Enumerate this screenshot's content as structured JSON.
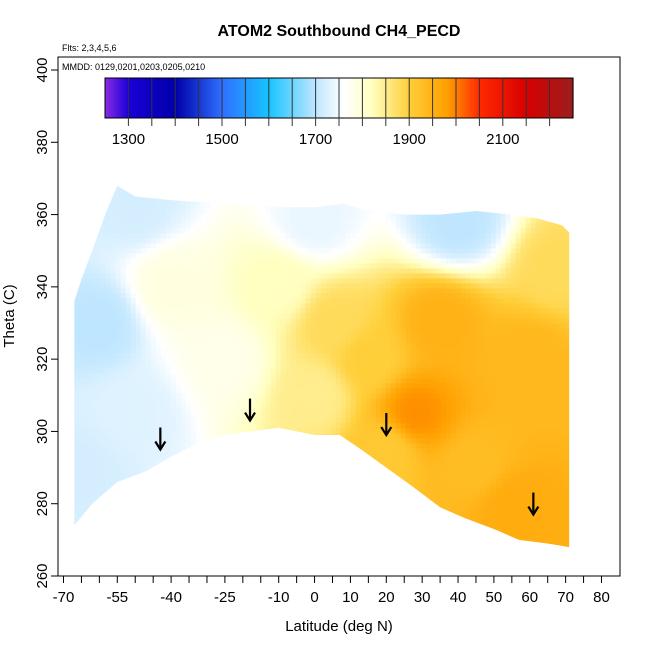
{
  "chart_data": {
    "type": "heatmap",
    "title": "ATOM2 Southbound CH4_PECD",
    "annotations": {
      "flights": "Flts: 2,3,4,5,6",
      "dates": "MMDD: 0129,0201,0203,0205,0210"
    },
    "xlabel": "Latitude (deg N)",
    "ylabel": "Theta (C)",
    "xlim": [
      -70,
      80
    ],
    "ylim": [
      260,
      400
    ],
    "x_ticks": [
      -70,
      -55,
      -40,
      -25,
      -10,
      0,
      10,
      20,
      30,
      40,
      50,
      60,
      70,
      80
    ],
    "x_tick_labels": [
      "-70",
      "-55",
      "-40",
      "-25",
      "-10",
      "0",
      "10",
      "20",
      "30",
      "40",
      "50",
      "60",
      "70",
      "80"
    ],
    "x_minor_ticks": [
      -65,
      -60,
      -50,
      -45,
      -35,
      -30,
      -20,
      -15,
      -5,
      5,
      15,
      25,
      35,
      45,
      55,
      65,
      75
    ],
    "y_ticks": [
      260,
      280,
      300,
      320,
      340,
      360,
      380,
      400
    ],
    "y_tick_labels": [
      "260",
      "280",
      "300",
      "320",
      "340",
      "360",
      "380",
      "400"
    ],
    "colorbar": {
      "range": [
        1250,
        2250
      ],
      "tick_values": [
        1300,
        1500,
        1700,
        1900,
        2100
      ],
      "tick_labels": [
        "1300",
        "1500",
        "1700",
        "1900",
        "2100"
      ],
      "divisions": [
        1250,
        1300,
        1350,
        1400,
        1450,
        1500,
        1550,
        1600,
        1650,
        1700,
        1750,
        1800,
        1850,
        1900,
        1950,
        2000,
        2050,
        2100,
        2150,
        2200,
        2250
      ],
      "color_stops": [
        {
          "value": 1250,
          "color": "#8a2be2"
        },
        {
          "value": 1300,
          "color": "#1b00d8"
        },
        {
          "value": 1400,
          "color": "#0000a8"
        },
        {
          "value": 1500,
          "color": "#2f6fff"
        },
        {
          "value": 1600,
          "color": "#18c4ff"
        },
        {
          "value": 1700,
          "color": "#bfe6ff"
        },
        {
          "value": 1760,
          "color": "#ffffff"
        },
        {
          "value": 1820,
          "color": "#ffffc0"
        },
        {
          "value": 1900,
          "color": "#ffcf3a"
        },
        {
          "value": 1980,
          "color": "#ffa000"
        },
        {
          "value": 2050,
          "color": "#ff2a00"
        },
        {
          "value": 2150,
          "color": "#d80000"
        },
        {
          "value": 2250,
          "color": "#9a1e1e"
        }
      ]
    },
    "domain_bottom": [
      [
        -67,
        274
      ],
      [
        -62,
        280
      ],
      [
        -55,
        286
      ],
      [
        -47,
        289
      ],
      [
        -40,
        293
      ],
      [
        -32,
        297
      ],
      [
        -25,
        299
      ],
      [
        -18,
        300
      ],
      [
        -10,
        301
      ],
      [
        0,
        299
      ],
      [
        7,
        299
      ],
      [
        13,
        295
      ],
      [
        20,
        290
      ],
      [
        27,
        285
      ],
      [
        35,
        279
      ],
      [
        42,
        276
      ],
      [
        50,
        273
      ],
      [
        57,
        270
      ],
      [
        65,
        269
      ],
      [
        71,
        268
      ]
    ],
    "domain_top": [
      [
        -67,
        336
      ],
      [
        -65,
        342
      ],
      [
        -62,
        350
      ],
      [
        -58,
        361
      ],
      [
        -55,
        368
      ],
      [
        -50,
        365
      ],
      [
        -40,
        364
      ],
      [
        -25,
        363
      ],
      [
        -15,
        363
      ],
      [
        -10,
        362
      ],
      [
        0,
        362
      ],
      [
        8,
        363
      ],
      [
        15,
        361
      ],
      [
        25,
        360
      ],
      [
        35,
        360
      ],
      [
        45,
        361
      ],
      [
        55,
        360
      ],
      [
        62,
        359
      ],
      [
        69,
        357
      ],
      [
        71,
        355
      ]
    ],
    "field_samples": [
      {
        "lat": -65,
        "theta": 290,
        "value": 1720
      },
      {
        "lat": -60,
        "theta": 330,
        "value": 1700
      },
      {
        "lat": -50,
        "theta": 305,
        "value": 1730
      },
      {
        "lat": -40,
        "theta": 340,
        "value": 1790
      },
      {
        "lat": -25,
        "theta": 320,
        "value": 1780
      },
      {
        "lat": -10,
        "theta": 340,
        "value": 1820
      },
      {
        "lat": 0,
        "theta": 310,
        "value": 1850
      },
      {
        "lat": 5,
        "theta": 330,
        "value": 1880
      },
      {
        "lat": 15,
        "theta": 320,
        "value": 1900
      },
      {
        "lat": 20,
        "theta": 295,
        "value": 1910
      },
      {
        "lat": 28,
        "theta": 305,
        "value": 1990
      },
      {
        "lat": 35,
        "theta": 330,
        "value": 1950
      },
      {
        "lat": 45,
        "theta": 290,
        "value": 1930
      },
      {
        "lat": 55,
        "theta": 280,
        "value": 1960
      },
      {
        "lat": 60,
        "theta": 320,
        "value": 1940
      },
      {
        "lat": 68,
        "theta": 345,
        "value": 1880
      },
      {
        "lat": 0,
        "theta": 358,
        "value": 1740
      },
      {
        "lat": 40,
        "theta": 358,
        "value": 1700
      },
      {
        "lat": -50,
        "theta": 362,
        "value": 1720
      }
    ],
    "arrows": [
      {
        "lat": -43,
        "theta": 295
      },
      {
        "lat": -18,
        "theta": 303
      },
      {
        "lat": 20,
        "theta": 299
      },
      {
        "lat": 61,
        "theta": 277
      }
    ]
  }
}
